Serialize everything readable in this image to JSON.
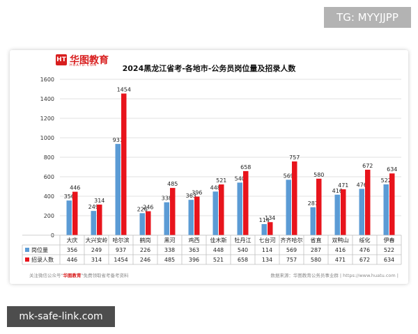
{
  "overlay_top_right": "TG: MYYJJPP",
  "overlay_bottom_left": "mk-safe-link.com",
  "logo": {
    "name": "华图教育",
    "sub": "HUATU.COM",
    "mark": "HT"
  },
  "footer": {
    "left_prefix": "关注微信公众号\"",
    "left_brand": "华图教育",
    "left_suffix": "\"免费领取省考备考资料",
    "right": "数据来源：华图教育公务员事业群 | https://www.huatu.com |"
  },
  "chart_data": {
    "type": "bar",
    "title": "2024黑龙江省考-各地市-公务员岗位量及招录人数",
    "categories": [
      "大庆",
      "大兴安岭",
      "哈尔滨",
      "鹤岗",
      "黑河",
      "鸡西",
      "佳木斯",
      "牡丹江",
      "七台河",
      "齐齐哈尔",
      "省直",
      "双鸭山",
      "绥化",
      "伊春"
    ],
    "series": [
      {
        "name": "岗位量",
        "color": "#5b9bd5",
        "values": [
          356,
          249,
          937,
          226,
          338,
          363,
          448,
          540,
          114,
          569,
          287,
          416,
          476,
          522
        ]
      },
      {
        "name": "招录人数",
        "color": "#e8141c",
        "values": [
          446,
          314,
          1454,
          246,
          485,
          396,
          521,
          658,
          134,
          757,
          580,
          471,
          672,
          634
        ]
      }
    ],
    "yticks": [
      0,
      200,
      400,
      600,
      800,
      1000,
      1200,
      1400,
      1600
    ],
    "ylim": [
      0,
      1600
    ],
    "grid": true,
    "table_below": true
  }
}
